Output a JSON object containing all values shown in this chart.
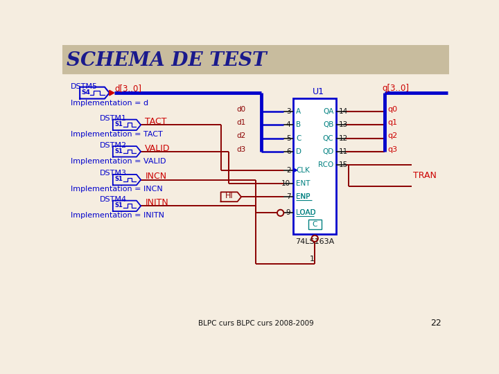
{
  "title": "SCHEMA DE TEST",
  "title_color": "#1a1a8c",
  "bg_color": "#f5ede0",
  "header_color": "#c8bc9e",
  "footer_text": "BLPC curs BLPC curs 2008-2009",
  "footer_page": "22",
  "blue": "#0000cc",
  "red": "#990000",
  "dark_blue": "#00008b",
  "black": "#111111",
  "teal": "#0000cd",
  "chip_border": "#0000cd",
  "chip_label_color": "#008080",
  "signal_red": "#8b0000",
  "pin_num_color": "#111111"
}
